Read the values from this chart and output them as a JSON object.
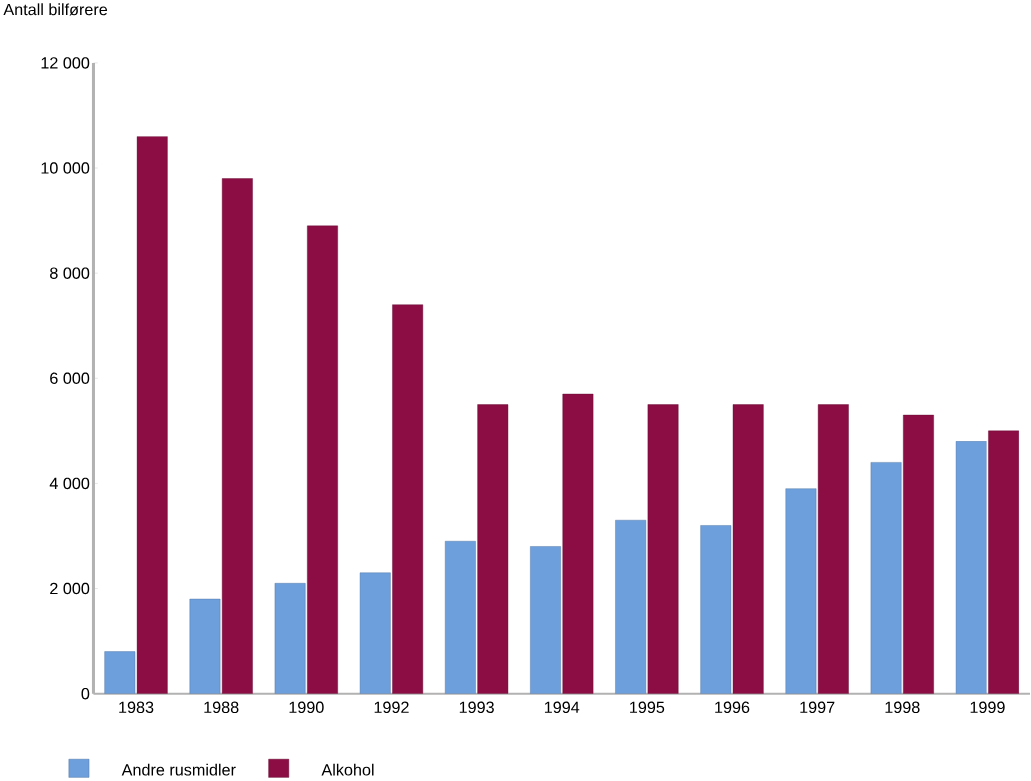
{
  "chart_data": {
    "type": "bar",
    "ylabel": "Antall bilførere",
    "categories": [
      "1983",
      "1988",
      "1990",
      "1992",
      "1993",
      "1994",
      "1995",
      "1996",
      "1997",
      "1998",
      "1999"
    ],
    "series": [
      {
        "name": "Andre rusmidler",
        "color": "#6d9fdc",
        "values": [
          800,
          1800,
          2100,
          2300,
          2900,
          2800,
          3300,
          3200,
          3900,
          4400,
          4800
        ]
      },
      {
        "name": "Alkohol",
        "color": "#8b0d43",
        "values": [
          10600,
          9800,
          8900,
          7400,
          5500,
          5700,
          5500,
          5500,
          5500,
          5300,
          5000
        ]
      }
    ],
    "ylim": [
      0,
      12000
    ],
    "yticks": [
      0,
      {
        "value": 2000,
        "label": "2 000"
      },
      {
        "value": 4000,
        "label": "4 000"
      },
      {
        "value": 6000,
        "label": "6 000"
      },
      {
        "value": 8000,
        "label": "8 000"
      },
      {
        "value": 10000,
        "label": "10 000"
      },
      {
        "value": 12000,
        "label": "12 000"
      }
    ],
    "grid": false,
    "legend": "bottom left"
  }
}
